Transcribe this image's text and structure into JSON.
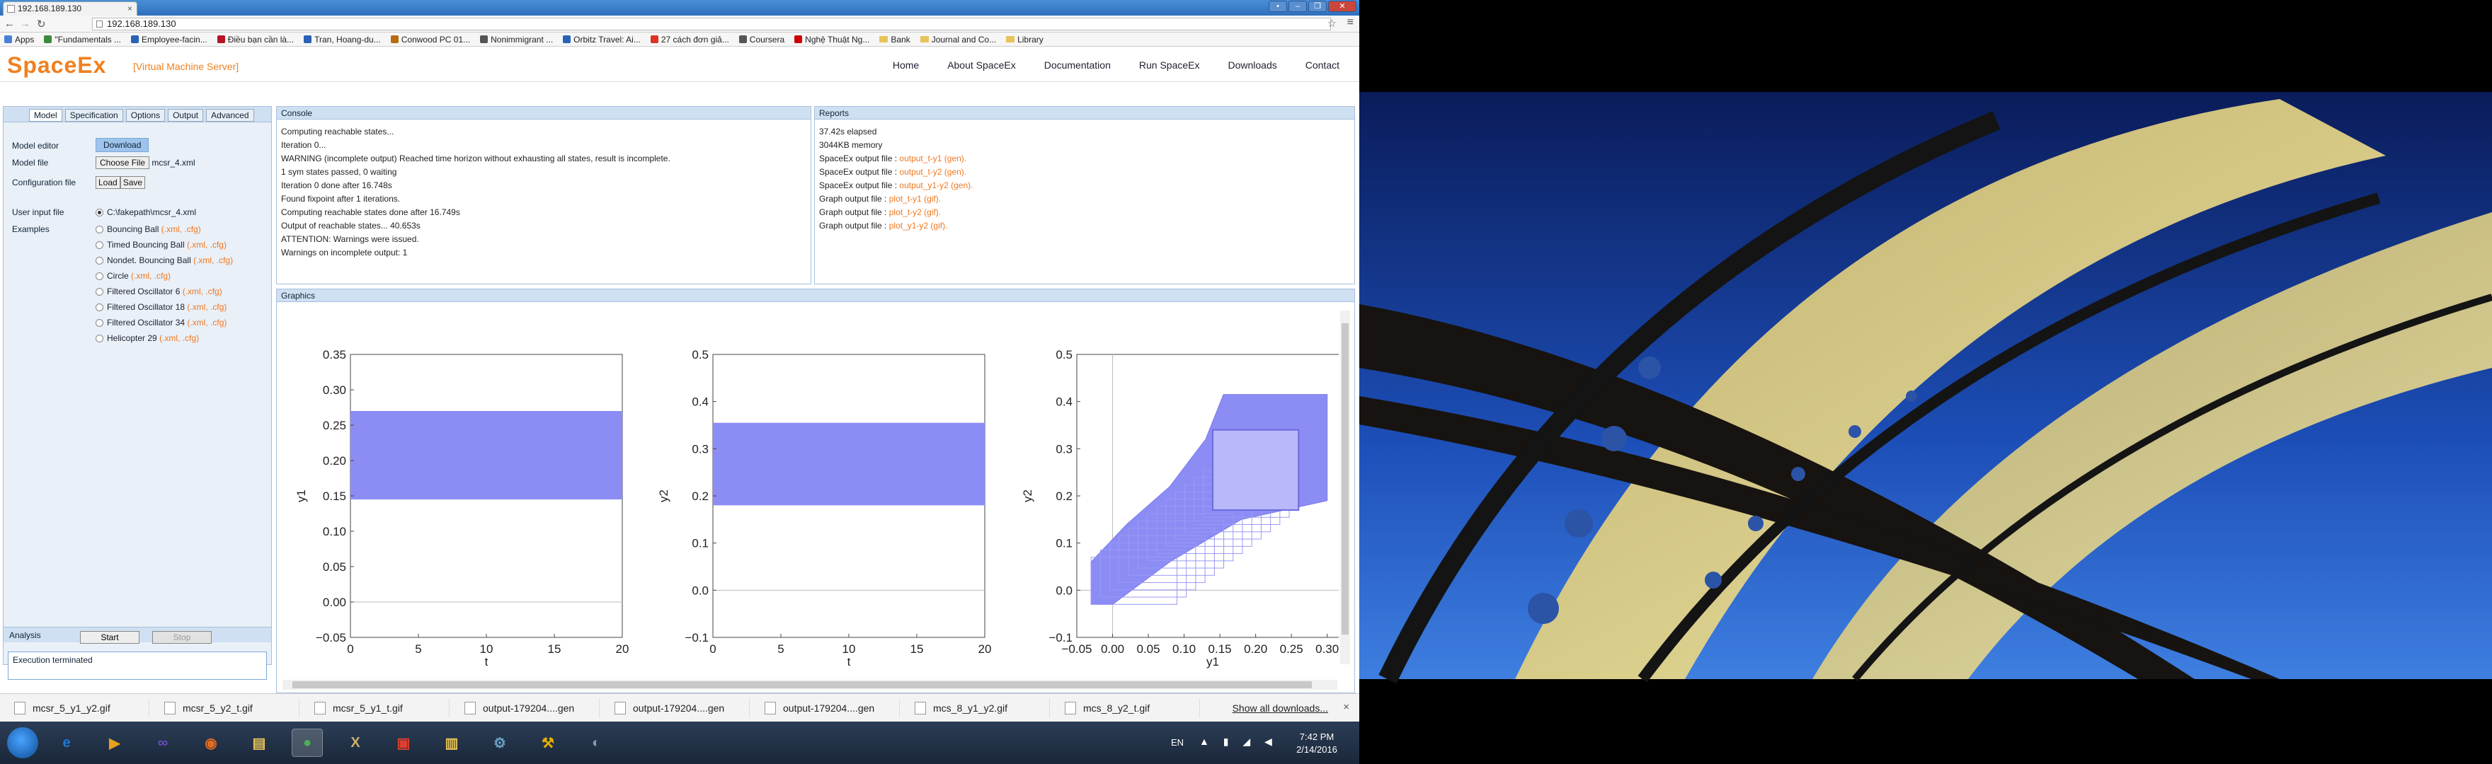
{
  "browser": {
    "tab_title": "192.168.189.130",
    "url": "192.168.189.130",
    "bookmarks": [
      {
        "label": "Apps",
        "color": "#4a7fd8"
      },
      {
        "label": "\"Fundamentals ...",
        "color": "#3c8a3c"
      },
      {
        "label": "Employee-facin...",
        "color": "#2a62b5"
      },
      {
        "label": "Điều bạn cần là...",
        "color": "#b5152a"
      },
      {
        "label": "Tran, Hoang-du...",
        "color": "#2a62b5"
      },
      {
        "label": "Conwood PC 01...",
        "color": "#b86b10"
      },
      {
        "label": "Nonimmigrant ...",
        "color": "#555"
      },
      {
        "label": "Orbitz Travel: Ai...",
        "color": "#2a62b5"
      },
      {
        "label": "27 cách đơn giả...",
        "color": "#d32"
      },
      {
        "label": "Coursera",
        "color": "#555"
      },
      {
        "label": "Nghệ Thuật Ng...",
        "color": "#c00"
      }
    ],
    "bookmark_folders": [
      "Bank",
      "Journal and Co...",
      "Library"
    ]
  },
  "header": {
    "logo": "SpaceEx",
    "subtitle": "[Virtual Machine Server]",
    "nav": [
      "Home",
      "About SpaceEx",
      "Documentation",
      "Run SpaceEx",
      "Downloads",
      "Contact"
    ]
  },
  "left": {
    "tabs": [
      "Model",
      "Specification",
      "Options",
      "Output",
      "Advanced"
    ],
    "model_editor_label": "Model editor",
    "download_label": "Download",
    "model_file_label": "Model file",
    "choose_file_label": "Choose File",
    "chosen_file": "mcsr_4.xml",
    "config_file_label": "Configuration file",
    "load_label": "Load",
    "save_label": "Save",
    "user_input_label": "User input file",
    "user_input_path": "C:\\fakepath\\mcsr_4.xml",
    "examples_label": "Examples",
    "examples": [
      {
        "name": "Bouncing Ball",
        "ext": "(.xml, .cfg)"
      },
      {
        "name": "Timed Bouncing Ball",
        "ext": "(.xml, .cfg)"
      },
      {
        "name": "Nondet. Bouncing Ball",
        "ext": "(.xml, .cfg)"
      },
      {
        "name": "Circle",
        "ext": "(.xml, .cfg)"
      },
      {
        "name": "Filtered Oscillator 6",
        "ext": "(.xml, .cfg)"
      },
      {
        "name": "Filtered Oscillator 18",
        "ext": "(.xml, .cfg)"
      },
      {
        "name": "Filtered Oscillator 34",
        "ext": "(.xml, .cfg)"
      },
      {
        "name": "Helicopter 29",
        "ext": "(.xml, .cfg)"
      }
    ],
    "analysis_label": "Analysis",
    "start_label": "Start",
    "stop_label": "Stop",
    "status": "Execution terminated"
  },
  "console": {
    "title": "Console",
    "lines": [
      "Computing reachable states...",
      "Iteration 0...",
      "WARNING (incomplete output) Reached time horizon without exhausting all states, result is incomplete.",
      "1 sym states passed, 0 waiting",
      "Iteration 0 done after 16.748s",
      "Found fixpoint after 1 iterations.",
      "Computing reachable states done after 16.749s",
      "Output of reachable states... 40.653s",
      "ATTENTION: Warnings were issued.",
      "Warnings on incomplete output: 1"
    ]
  },
  "reports": {
    "title": "Reports",
    "lines": [
      {
        "text": "37.42s elapsed",
        "link": ""
      },
      {
        "text": "3044KB memory",
        "link": ""
      },
      {
        "text": "SpaceEx output file : ",
        "link": "output_t-y1 (gen)."
      },
      {
        "text": "SpaceEx output file : ",
        "link": "output_t-y2 (gen)."
      },
      {
        "text": "SpaceEx output file : ",
        "link": "output_y1-y2 (gen)."
      },
      {
        "text": "Graph output file : ",
        "link": "plot_t-y1 (gif)."
      },
      {
        "text": "Graph output file : ",
        "link": "plot_t-y2 (gif)."
      },
      {
        "text": "Graph output file : ",
        "link": "plot_y1-y2 (gif)."
      }
    ]
  },
  "graphics": {
    "title": "Graphics"
  },
  "chart_data": [
    {
      "type": "area",
      "xlabel": "t",
      "ylabel": "y1",
      "xlim": [
        0,
        20
      ],
      "ylim": [
        -0.05,
        0.35
      ],
      "xticks": [
        "0",
        "5",
        "10",
        "15",
        "20"
      ],
      "yticks": [
        "−0.05",
        "0.00",
        "0.05",
        "0.10",
        "0.15",
        "0.20",
        "0.25",
        "0.30",
        "0.35"
      ],
      "band": {
        "x": [
          0,
          20
        ],
        "y": [
          0.145,
          0.27
        ]
      },
      "fill": "#8c8cf5"
    },
    {
      "type": "area",
      "xlabel": "t",
      "ylabel": "y2",
      "xlim": [
        0,
        20
      ],
      "ylim": [
        -0.1,
        0.5
      ],
      "xticks": [
        "0",
        "5",
        "10",
        "15",
        "20"
      ],
      "yticks": [
        "−0.1",
        "0.0",
        "0.1",
        "0.2",
        "0.3",
        "0.4",
        "0.5"
      ],
      "band": {
        "x": [
          0,
          20
        ],
        "y": [
          0.18,
          0.355
        ]
      },
      "fill": "#8c8cf5"
    },
    {
      "type": "area",
      "xlabel": "y1",
      "ylabel": "y2",
      "xlim": [
        -0.05,
        0.33
      ],
      "ylim": [
        -0.1,
        0.5
      ],
      "xticks": [
        "−0.05",
        "0.00",
        "0.05",
        "0.10",
        "0.15",
        "0.20",
        "0.25",
        "0.30"
      ],
      "yticks": [
        "−0.1",
        "0.0",
        "0.1",
        "0.2",
        "0.3",
        "0.4",
        "0.5"
      ],
      "region": [
        [
          -0.03,
          -0.03
        ],
        [
          -0.03,
          0.06
        ],
        [
          0.02,
          0.14
        ],
        [
          0.08,
          0.22
        ],
        [
          0.13,
          0.32
        ],
        [
          0.155,
          0.415
        ],
        [
          0.3,
          0.415
        ],
        [
          0.3,
          0.19
        ],
        [
          0.18,
          0.15
        ],
        [
          0.08,
          0.06
        ],
        [
          0.0,
          -0.03
        ]
      ],
      "inner_box": {
        "x": [
          0.14,
          0.26
        ],
        "y": [
          0.17,
          0.34
        ]
      },
      "fill": "#8c8cf5"
    }
  ],
  "downloads": {
    "items": [
      "mcsr_5_y1_y2.gif",
      "mcsr_5_y2_t.gif",
      "mcsr_5_y1_t.gif",
      "output-179204....gen",
      "output-179204....gen",
      "output-179204....gen",
      "mcs_8_y1_y2.gif",
      "mcs_8_y2_t.gif"
    ],
    "show_all": "Show all downloads..."
  },
  "taskbar": {
    "apps": [
      "ie-icon",
      "media-icon",
      "visual-studio-icon",
      "firefox-icon",
      "explorer-icon",
      "chrome-icon",
      "app-icon",
      "pdf-icon",
      "folder-icon",
      "network-icon",
      "tool-icon",
      "paint-icon"
    ],
    "lang": "EN",
    "time": "7:42 PM",
    "date": "2/14/2016"
  }
}
